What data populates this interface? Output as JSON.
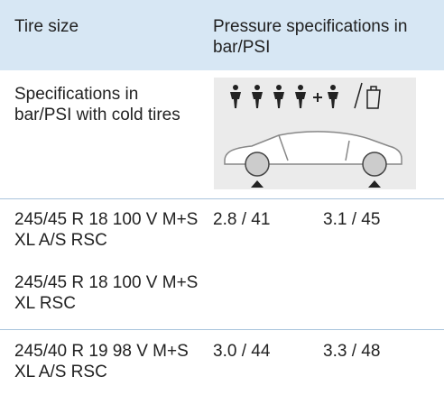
{
  "table": {
    "header": [
      "Tire size",
      "Pressure specifications in bar/PSI"
    ],
    "note": "Specifications in bar/PSI with cold tires",
    "rows": [
      {
        "sizes": [
          "245/45 R 18 100 V M+S XL A/S RSC",
          "245/45 R 18 100 V M+S XL RSC"
        ],
        "front": "2.8 / 41",
        "rear": "3.1 / 45"
      },
      {
        "sizes": [
          "245/40 R 19 98 V M+S XL A/S RSC"
        ],
        "front": "3.0 / 44",
        "rear": "3.3 / 48"
      }
    ]
  }
}
